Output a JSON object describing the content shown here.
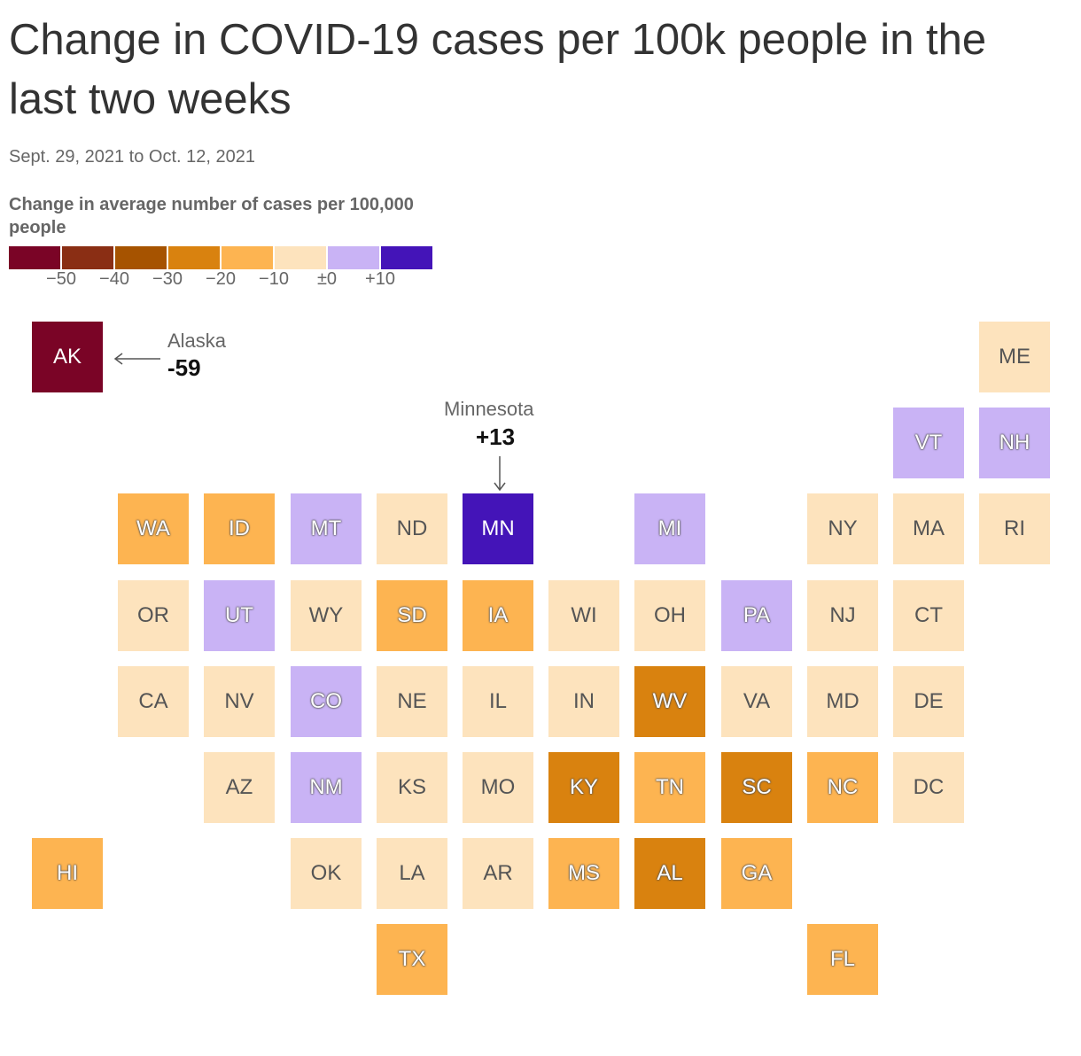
{
  "title": "Change in COVID-19 cases per 100k people in the last two weeks",
  "subtitle": "Sept. 29, 2021 to Oct. 12, 2021",
  "legend": {
    "title": "Change in average number of cases per 100,000 people",
    "colors": [
      "#7a0426",
      "#8a2e14",
      "#a65300",
      "#d9820f",
      "#fdb451",
      "#fde3bd",
      "#c9b3f5",
      "#4414b8"
    ],
    "ticks": [
      "−50",
      "−40",
      "−30",
      "−20",
      "−10",
      "±0",
      "+10"
    ]
  },
  "annotations": {
    "alaska": {
      "name": "Alaska",
      "value": "-59"
    },
    "minnesota": {
      "name": "Minnesota",
      "value": "+13"
    }
  },
  "chart_data": {
    "type": "tile-grid-map",
    "value_bins": [
      "< -50",
      "-50 to -40",
      "-40 to -30",
      "-30 to -20",
      "-20 to -10",
      "-10 to 0",
      "0 to +10",
      "> +10"
    ],
    "states": [
      {
        "abbr": "AK",
        "col": 0,
        "row": 0,
        "bin": 0
      },
      {
        "abbr": "ME",
        "col": 11,
        "row": 0,
        "bin": 5
      },
      {
        "abbr": "VT",
        "col": 10,
        "row": 1,
        "bin": 6
      },
      {
        "abbr": "NH",
        "col": 11,
        "row": 1,
        "bin": 6
      },
      {
        "abbr": "WA",
        "col": 1,
        "row": 2,
        "bin": 4
      },
      {
        "abbr": "ID",
        "col": 2,
        "row": 2,
        "bin": 4
      },
      {
        "abbr": "MT",
        "col": 3,
        "row": 2,
        "bin": 6
      },
      {
        "abbr": "ND",
        "col": 4,
        "row": 2,
        "bin": 5
      },
      {
        "abbr": "MN",
        "col": 5,
        "row": 2,
        "bin": 7
      },
      {
        "abbr": "MI",
        "col": 7,
        "row": 2,
        "bin": 6
      },
      {
        "abbr": "NY",
        "col": 9,
        "row": 2,
        "bin": 5
      },
      {
        "abbr": "MA",
        "col": 10,
        "row": 2,
        "bin": 5
      },
      {
        "abbr": "RI",
        "col": 11,
        "row": 2,
        "bin": 5
      },
      {
        "abbr": "OR",
        "col": 1,
        "row": 3,
        "bin": 5
      },
      {
        "abbr": "UT",
        "col": 2,
        "row": 3,
        "bin": 6
      },
      {
        "abbr": "WY",
        "col": 3,
        "row": 3,
        "bin": 5
      },
      {
        "abbr": "SD",
        "col": 4,
        "row": 3,
        "bin": 4
      },
      {
        "abbr": "IA",
        "col": 5,
        "row": 3,
        "bin": 4
      },
      {
        "abbr": "WI",
        "col": 6,
        "row": 3,
        "bin": 5
      },
      {
        "abbr": "OH",
        "col": 7,
        "row": 3,
        "bin": 5
      },
      {
        "abbr": "PA",
        "col": 8,
        "row": 3,
        "bin": 6
      },
      {
        "abbr": "NJ",
        "col": 9,
        "row": 3,
        "bin": 5
      },
      {
        "abbr": "CT",
        "col": 10,
        "row": 3,
        "bin": 5
      },
      {
        "abbr": "CA",
        "col": 1,
        "row": 4,
        "bin": 5
      },
      {
        "abbr": "NV",
        "col": 2,
        "row": 4,
        "bin": 5
      },
      {
        "abbr": "CO",
        "col": 3,
        "row": 4,
        "bin": 6
      },
      {
        "abbr": "NE",
        "col": 4,
        "row": 4,
        "bin": 5
      },
      {
        "abbr": "IL",
        "col": 5,
        "row": 4,
        "bin": 5
      },
      {
        "abbr": "IN",
        "col": 6,
        "row": 4,
        "bin": 5
      },
      {
        "abbr": "WV",
        "col": 7,
        "row": 4,
        "bin": 3
      },
      {
        "abbr": "VA",
        "col": 8,
        "row": 4,
        "bin": 5
      },
      {
        "abbr": "MD",
        "col": 9,
        "row": 4,
        "bin": 5
      },
      {
        "abbr": "DE",
        "col": 10,
        "row": 4,
        "bin": 5
      },
      {
        "abbr": "AZ",
        "col": 2,
        "row": 5,
        "bin": 5
      },
      {
        "abbr": "NM",
        "col": 3,
        "row": 5,
        "bin": 6
      },
      {
        "abbr": "KS",
        "col": 4,
        "row": 5,
        "bin": 5
      },
      {
        "abbr": "MO",
        "col": 5,
        "row": 5,
        "bin": 5
      },
      {
        "abbr": "KY",
        "col": 6,
        "row": 5,
        "bin": 3
      },
      {
        "abbr": "TN",
        "col": 7,
        "row": 5,
        "bin": 4
      },
      {
        "abbr": "SC",
        "col": 8,
        "row": 5,
        "bin": 3
      },
      {
        "abbr": "NC",
        "col": 9,
        "row": 5,
        "bin": 4
      },
      {
        "abbr": "DC",
        "col": 10,
        "row": 5,
        "bin": 5
      },
      {
        "abbr": "HI",
        "col": 0,
        "row": 6,
        "bin": 4
      },
      {
        "abbr": "OK",
        "col": 3,
        "row": 6,
        "bin": 5
      },
      {
        "abbr": "LA",
        "col": 4,
        "row": 6,
        "bin": 5
      },
      {
        "abbr": "AR",
        "col": 5,
        "row": 6,
        "bin": 5
      },
      {
        "abbr": "MS",
        "col": 6,
        "row": 6,
        "bin": 4
      },
      {
        "abbr": "AL",
        "col": 7,
        "row": 6,
        "bin": 3
      },
      {
        "abbr": "GA",
        "col": 8,
        "row": 6,
        "bin": 4
      },
      {
        "abbr": "TX",
        "col": 4,
        "row": 7,
        "bin": 4
      },
      {
        "abbr": "FL",
        "col": 9,
        "row": 7,
        "bin": 4
      }
    ]
  }
}
